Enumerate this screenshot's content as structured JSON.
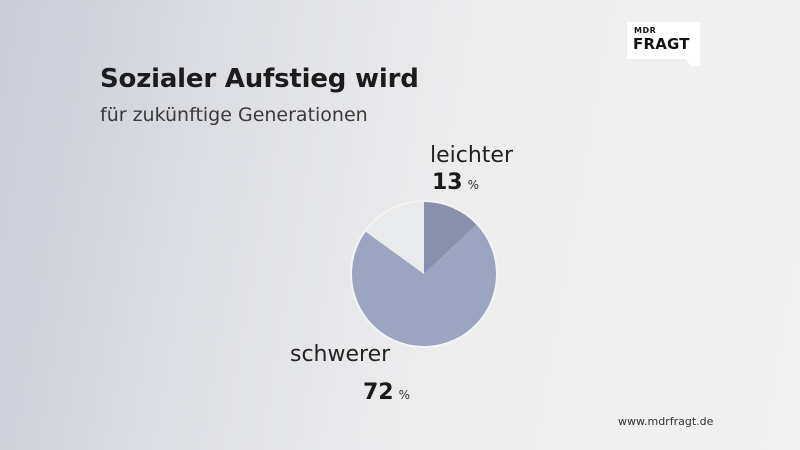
{
  "title": "Sozialer Aufstieg wird",
  "subtitle": "für zukünftige Generationen",
  "logo": {
    "top": "MDR",
    "main": "FRAGT"
  },
  "footer": "www.mdrfragt.de",
  "chart_data": {
    "type": "pie",
    "title": "Sozialer Aufstieg wird",
    "subtitle": "für zukünftige Generationen",
    "unit": "%",
    "slices": [
      {
        "label": "leichter",
        "value": 13,
        "color": "#8a90ab"
      },
      {
        "label": "schwerer",
        "value": 72,
        "color": "#9ba5c2"
      },
      {
        "label": "",
        "value": 15,
        "color": "#eaebed"
      }
    ]
  }
}
